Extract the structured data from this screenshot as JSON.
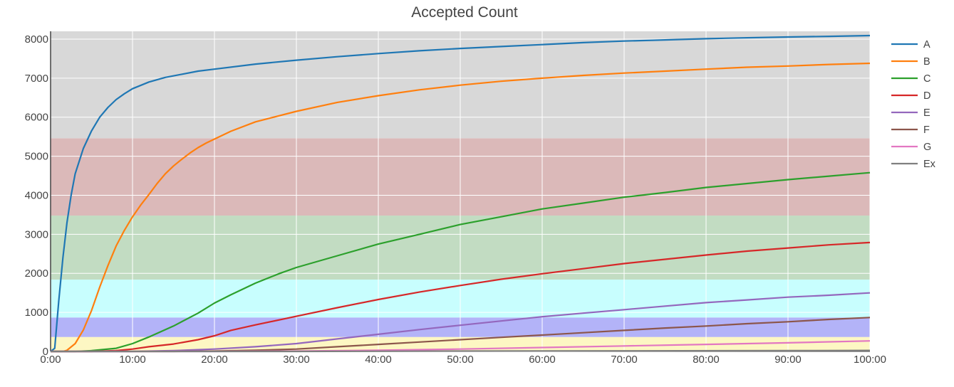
{
  "chart_data": {
    "type": "line",
    "title": "Accepted Count",
    "xlabel": "",
    "ylabel": "",
    "x_unit": "minutes",
    "xlim": [
      0,
      100
    ],
    "ylim": [
      0,
      8200
    ],
    "x_ticks": [
      0,
      10,
      20,
      30,
      40,
      50,
      60,
      70,
      80,
      90,
      100
    ],
    "x_tick_labels": [
      "0:00",
      "10:00",
      "20:00",
      "30:00",
      "40:00",
      "50:00",
      "60:00",
      "70:00",
      "80:00",
      "90:00",
      "100:00"
    ],
    "y_ticks": [
      0,
      1000,
      2000,
      3000,
      4000,
      5000,
      6000,
      7000,
      8000
    ],
    "y_tick_labels": [
      "0",
      "1000",
      "2000",
      "3000",
      "4000",
      "5000",
      "6000",
      "7000",
      "8000"
    ],
    "grid": true,
    "legend_position": "right",
    "bands": [
      {
        "y0": 0,
        "y1": 370,
        "color": "#fdf7c3"
      },
      {
        "y0": 370,
        "y1": 870,
        "color": "#b3b3f8"
      },
      {
        "y0": 870,
        "y1": 1840,
        "color": "#c8fefe"
      },
      {
        "y0": 1840,
        "y1": 3480,
        "color": "#c2dcc2"
      },
      {
        "y0": 3480,
        "y1": 5460,
        "color": "#dbb9b9"
      },
      {
        "y0": 5460,
        "y1": 8200,
        "color": "#d8d8d8"
      }
    ],
    "series": [
      {
        "name": "A",
        "color": "#1f77b4",
        "points": [
          [
            0,
            0
          ],
          [
            0.5,
            80
          ],
          [
            1,
            1300
          ],
          [
            1.5,
            2400
          ],
          [
            2,
            3300
          ],
          [
            2.5,
            4000
          ],
          [
            3,
            4550
          ],
          [
            4,
            5200
          ],
          [
            5,
            5650
          ],
          [
            6,
            6000
          ],
          [
            7,
            6250
          ],
          [
            8,
            6450
          ],
          [
            9,
            6600
          ],
          [
            10,
            6730
          ],
          [
            12,
            6900
          ],
          [
            14,
            7020
          ],
          [
            16,
            7100
          ],
          [
            18,
            7180
          ],
          [
            20,
            7230
          ],
          [
            25,
            7360
          ],
          [
            30,
            7460
          ],
          [
            35,
            7550
          ],
          [
            40,
            7630
          ],
          [
            45,
            7700
          ],
          [
            50,
            7760
          ],
          [
            55,
            7810
          ],
          [
            60,
            7860
          ],
          [
            65,
            7910
          ],
          [
            70,
            7950
          ],
          [
            75,
            7980
          ],
          [
            80,
            8010
          ],
          [
            85,
            8035
          ],
          [
            90,
            8055
          ],
          [
            95,
            8070
          ],
          [
            100,
            8090
          ]
        ]
      },
      {
        "name": "B",
        "color": "#ff7f0e",
        "points": [
          [
            0,
            0
          ],
          [
            1.5,
            0
          ],
          [
            2,
            30
          ],
          [
            3,
            200
          ],
          [
            4,
            550
          ],
          [
            5,
            1050
          ],
          [
            6,
            1650
          ],
          [
            7,
            2200
          ],
          [
            8,
            2700
          ],
          [
            9,
            3100
          ],
          [
            10,
            3450
          ],
          [
            11,
            3750
          ],
          [
            12,
            4020
          ],
          [
            13,
            4300
          ],
          [
            14,
            4550
          ],
          [
            15,
            4750
          ],
          [
            16,
            4920
          ],
          [
            17,
            5080
          ],
          [
            18,
            5220
          ],
          [
            19,
            5340
          ],
          [
            20,
            5440
          ],
          [
            22,
            5640
          ],
          [
            25,
            5880
          ],
          [
            30,
            6150
          ],
          [
            35,
            6380
          ],
          [
            40,
            6550
          ],
          [
            45,
            6700
          ],
          [
            50,
            6820
          ],
          [
            55,
            6920
          ],
          [
            60,
            7000
          ],
          [
            65,
            7070
          ],
          [
            70,
            7130
          ],
          [
            75,
            7180
          ],
          [
            80,
            7230
          ],
          [
            85,
            7280
          ],
          [
            90,
            7310
          ],
          [
            95,
            7350
          ],
          [
            100,
            7380
          ]
        ]
      },
      {
        "name": "C",
        "color": "#2ca02c",
        "points": [
          [
            0,
            0
          ],
          [
            3,
            0
          ],
          [
            5,
            20
          ],
          [
            8,
            80
          ],
          [
            10,
            200
          ],
          [
            12,
            370
          ],
          [
            15,
            650
          ],
          [
            18,
            980
          ],
          [
            20,
            1240
          ],
          [
            22,
            1450
          ],
          [
            25,
            1750
          ],
          [
            28,
            2000
          ],
          [
            30,
            2150
          ],
          [
            35,
            2450
          ],
          [
            40,
            2750
          ],
          [
            45,
            3000
          ],
          [
            50,
            3250
          ],
          [
            55,
            3450
          ],
          [
            60,
            3650
          ],
          [
            65,
            3800
          ],
          [
            70,
            3950
          ],
          [
            75,
            4070
          ],
          [
            80,
            4200
          ],
          [
            85,
            4300
          ],
          [
            90,
            4400
          ],
          [
            95,
            4490
          ],
          [
            100,
            4580
          ]
        ]
      },
      {
        "name": "D",
        "color": "#d62728",
        "points": [
          [
            0,
            0
          ],
          [
            5,
            0
          ],
          [
            8,
            20
          ],
          [
            10,
            60
          ],
          [
            12,
            120
          ],
          [
            15,
            190
          ],
          [
            18,
            300
          ],
          [
            20,
            400
          ],
          [
            22,
            540
          ],
          [
            25,
            680
          ],
          [
            30,
            900
          ],
          [
            35,
            1120
          ],
          [
            40,
            1330
          ],
          [
            45,
            1520
          ],
          [
            50,
            1690
          ],
          [
            55,
            1850
          ],
          [
            60,
            1990
          ],
          [
            65,
            2120
          ],
          [
            70,
            2250
          ],
          [
            75,
            2360
          ],
          [
            80,
            2470
          ],
          [
            85,
            2570
          ],
          [
            90,
            2650
          ],
          [
            95,
            2730
          ],
          [
            100,
            2790
          ]
        ]
      },
      {
        "name": "E",
        "color": "#9467bd",
        "points": [
          [
            0,
            0
          ],
          [
            10,
            0
          ],
          [
            15,
            20
          ],
          [
            20,
            60
          ],
          [
            25,
            120
          ],
          [
            30,
            200
          ],
          [
            35,
            320
          ],
          [
            40,
            440
          ],
          [
            45,
            560
          ],
          [
            50,
            670
          ],
          [
            55,
            780
          ],
          [
            60,
            890
          ],
          [
            65,
            980
          ],
          [
            70,
            1070
          ],
          [
            75,
            1160
          ],
          [
            80,
            1250
          ],
          [
            85,
            1320
          ],
          [
            90,
            1390
          ],
          [
            95,
            1440
          ],
          [
            100,
            1500
          ]
        ]
      },
      {
        "name": "F",
        "color": "#8c564b",
        "points": [
          [
            0,
            0
          ],
          [
            15,
            0
          ],
          [
            20,
            10
          ],
          [
            25,
            30
          ],
          [
            30,
            60
          ],
          [
            35,
            120
          ],
          [
            40,
            180
          ],
          [
            45,
            240
          ],
          [
            50,
            300
          ],
          [
            55,
            360
          ],
          [
            60,
            420
          ],
          [
            65,
            480
          ],
          [
            70,
            540
          ],
          [
            75,
            600
          ],
          [
            80,
            650
          ],
          [
            85,
            710
          ],
          [
            90,
            760
          ],
          [
            95,
            820
          ],
          [
            100,
            870
          ]
        ]
      },
      {
        "name": "G",
        "color": "#e377c2",
        "points": [
          [
            0,
            0
          ],
          [
            20,
            0
          ],
          [
            30,
            10
          ],
          [
            40,
            30
          ],
          [
            50,
            60
          ],
          [
            60,
            100
          ],
          [
            70,
            140
          ],
          [
            80,
            180
          ],
          [
            90,
            220
          ],
          [
            100,
            270
          ]
        ]
      },
      {
        "name": "Ex",
        "color": "#7f7f7f",
        "points": [
          [
            0,
            0
          ],
          [
            30,
            0
          ],
          [
            50,
            10
          ],
          [
            70,
            15
          ],
          [
            90,
            20
          ],
          [
            100,
            25
          ]
        ]
      }
    ]
  }
}
